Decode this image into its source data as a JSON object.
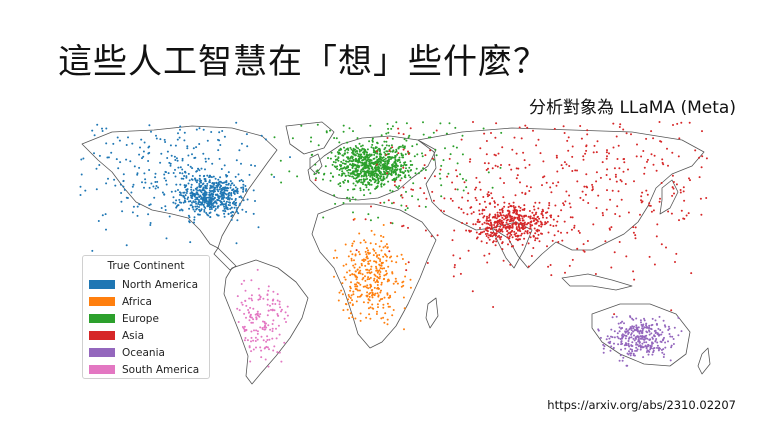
{
  "slide": {
    "title": "這些人工智慧在「想」些什麼？",
    "subtitle": "分析對象為 LLaMA (Meta)",
    "source": "https://arxiv.org/abs/2310.02207"
  },
  "legend": {
    "title": "True Continent",
    "items": [
      {
        "label": "North America",
        "color": "#1f77b4"
      },
      {
        "label": "Africa",
        "color": "#ff7f0e"
      },
      {
        "label": "Europe",
        "color": "#2ca02c"
      },
      {
        "label": "Asia",
        "color": "#d62728"
      },
      {
        "label": "Oceania",
        "color": "#9467bd"
      },
      {
        "label": "South America",
        "color": "#e377c2"
      }
    ]
  }
}
